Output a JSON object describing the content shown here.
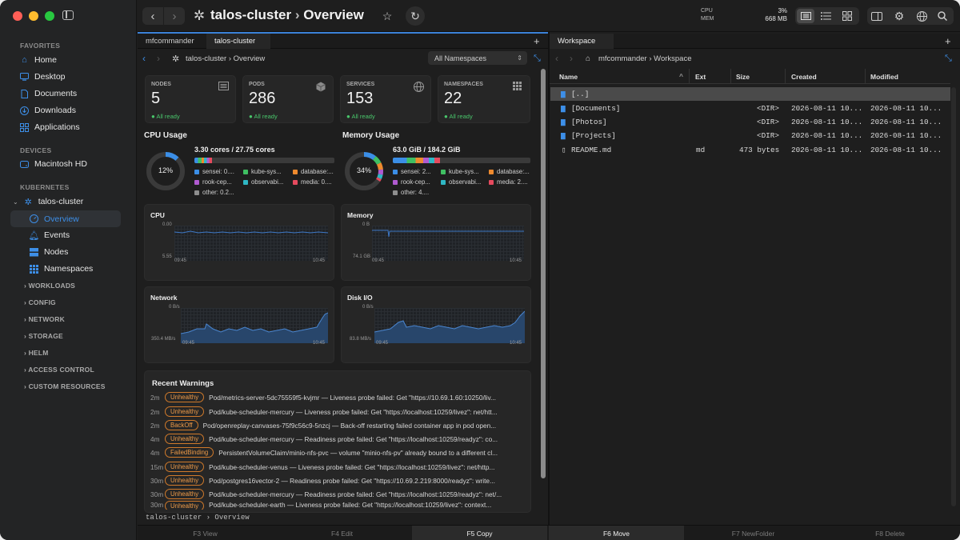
{
  "sidebar": {
    "favorites_title": "FAVORITES",
    "favorites": [
      {
        "label": "Home",
        "icon": "house-icon"
      },
      {
        "label": "Desktop",
        "icon": "desktop-icon"
      },
      {
        "label": "Documents",
        "icon": "document-icon"
      },
      {
        "label": "Downloads",
        "icon": "download-icon"
      },
      {
        "label": "Applications",
        "icon": "grid-icon"
      }
    ],
    "devices_title": "DEVICES",
    "devices": [
      {
        "label": "Macintosh HD",
        "icon": "disk-icon"
      }
    ],
    "kubernetes_title": "KUBERNETES",
    "cluster": "talos-cluster",
    "cluster_items": [
      {
        "label": "Overview",
        "icon": "gauge-icon"
      },
      {
        "label": "Events",
        "icon": "bell-icon"
      },
      {
        "label": "Nodes",
        "icon": "server-icon"
      },
      {
        "label": "Namespaces",
        "icon": "grid-icon"
      }
    ],
    "categories": [
      "WORKLOADS",
      "CONFIG",
      "NETWORK",
      "STORAGE",
      "HELM",
      "ACCESS CONTROL",
      "CUSTOM RESOURCES"
    ]
  },
  "titlebar": {
    "title": "talos-cluster",
    "page": "Overview",
    "cpu_label": "CPU",
    "mem_label": "MEM",
    "cpu_value": "3%",
    "mem_value": "668 MB"
  },
  "left_pane": {
    "tabs": [
      "mfcommander",
      "talos-cluster"
    ],
    "breadcrumb": "talos-cluster › Overview",
    "namespace_select": "All Namespaces",
    "cards": [
      {
        "label": "NODES",
        "value": "5",
        "sub": "All ready",
        "icon": "server-icon"
      },
      {
        "label": "PODS",
        "value": "286",
        "sub": "All ready",
        "icon": "cube-icon"
      },
      {
        "label": "SERVICES",
        "value": "153",
        "sub": "All ready",
        "icon": "globe-icon"
      },
      {
        "label": "NAMESPACES",
        "value": "22",
        "sub": "All ready",
        "icon": "grid-icon"
      }
    ],
    "cpu_usage": {
      "title": "CPU Usage",
      "percent": "12%",
      "percent_value": 12,
      "summary": "3.30 cores / 27.75 cores",
      "legend": [
        {
          "label": "sensei: 0....",
          "color": "#3b8ee6"
        },
        {
          "label": "kube-sys...",
          "color": "#3fbf62"
        },
        {
          "label": "database:...",
          "color": "#ee8a2e"
        },
        {
          "label": "observabi...",
          "color": "#2fb7c4"
        },
        {
          "label": "rook-cep...",
          "color": "#b05ad0"
        },
        {
          "label": "media: 0....",
          "color": "#e64a5e"
        },
        {
          "label": "other: 0.2...",
          "color": "#8e8e8e"
        }
      ]
    },
    "memory_usage": {
      "title": "Memory Usage",
      "percent": "34%",
      "percent_value": 34,
      "summary": "63.0 GiB / 184.2 GiB",
      "legend": [
        {
          "label": "sensei: 2...",
          "color": "#3b8ee6"
        },
        {
          "label": "kube-sys...",
          "color": "#3fbf62"
        },
        {
          "label": "database:...",
          "color": "#ee8a2e"
        },
        {
          "label": "rook-cep...",
          "color": "#b05ad0"
        },
        {
          "label": "observabi...",
          "color": "#2fb7c4"
        },
        {
          "label": "media: 2....",
          "color": "#e64a5e"
        },
        {
          "label": "other: 4....",
          "color": "#8e8e8e"
        }
      ]
    },
    "charts": [
      {
        "title": "CPU",
        "ytop": "0.00",
        "ybottom": "5.55",
        "xstart": "09:45",
        "xend": "10:45"
      },
      {
        "title": "Memory",
        "ytop": "0 B",
        "ybottom": "74.1 GB",
        "xstart": "09:45",
        "xend": "10:45"
      },
      {
        "title": "Network",
        "ytop": "0 B/s",
        "ybottom": "350.4 MB/s",
        "xstart": "09:45",
        "xend": "10:45"
      },
      {
        "title": "Disk I/O",
        "ytop": "0 B/s",
        "ybottom": "83.8 MB/s",
        "xstart": "09:45",
        "xend": "10:45"
      }
    ],
    "warnings_title": "Recent Warnings",
    "warnings": [
      {
        "time": "2m",
        "reason": "Unhealthy",
        "message": "Pod/metrics-server-5dc75559f5-kvjmr — Liveness probe failed: Get \"https://10.69.1.60:10250/liv..."
      },
      {
        "time": "2m",
        "reason": "Unhealthy",
        "message": "Pod/kube-scheduler-mercury — Liveness probe failed: Get \"https://localhost:10259/livez\": net/htt..."
      },
      {
        "time": "2m",
        "reason": "BackOff",
        "message": "Pod/openreplay-canvases-75f9c56c9-5nzcj — Back-off restarting failed container app in pod open..."
      },
      {
        "time": "4m",
        "reason": "Unhealthy",
        "message": "Pod/kube-scheduler-mercury — Readiness probe failed: Get \"https://localhost:10259/readyz\": co..."
      },
      {
        "time": "4m",
        "reason": "FailedBinding",
        "message": "PersistentVolumeClaim/minio-nfs-pvc — volume \"minio-nfs-pv\" already bound to a different cl..."
      },
      {
        "time": "15m",
        "reason": "Unhealthy",
        "message": "Pod/kube-scheduler-venus — Liveness probe failed: Get \"https://localhost:10259/livez\": net/http..."
      },
      {
        "time": "30m",
        "reason": "Unhealthy",
        "message": "Pod/postgres16vector-2 — Readiness probe failed: Get \"https://10.69.2.219:8000/readyz\": write..."
      },
      {
        "time": "30m",
        "reason": "Unhealthy",
        "message": "Pod/kube-scheduler-mercury — Readiness probe failed: Get \"https://localhost:10259/readyz\": net/..."
      },
      {
        "time": "30m",
        "reason": "Unhealthy",
        "message": "Pod/kube-scheduler-earth — Liveness probe failed: Get \"https://localhost:10259/livez\": context..."
      }
    ],
    "status_path": "talos-cluster › Overview"
  },
  "right_pane": {
    "tab": "Workspace",
    "breadcrumb": "mfcommander › Workspace",
    "columns": [
      "Name",
      "Ext",
      "Size",
      "Created",
      "Modified"
    ],
    "rows": [
      {
        "name": "[..]",
        "ext": "",
        "size": "",
        "created": "",
        "modified": ""
      },
      {
        "name": "[Documents]",
        "ext": "",
        "size": "<DIR>",
        "created": "2026-08-11 10...",
        "modified": "2026-08-11 10..."
      },
      {
        "name": "[Photos]",
        "ext": "",
        "size": "<DIR>",
        "created": "2026-08-11 10...",
        "modified": "2026-08-11 10..."
      },
      {
        "name": "[Projects]",
        "ext": "",
        "size": "<DIR>",
        "created": "2026-08-11 10...",
        "modified": "2026-08-11 10..."
      },
      {
        "name": "README.md",
        "ext": "md",
        "size": "473 bytes",
        "created": "2026-08-11 10...",
        "modified": "2026-08-11 10..."
      }
    ]
  },
  "fnkeys": [
    "F3 View",
    "F4 Edit",
    "F5 Copy",
    "F6 Move",
    "F7 NewFolder",
    "F8 Delete"
  ]
}
